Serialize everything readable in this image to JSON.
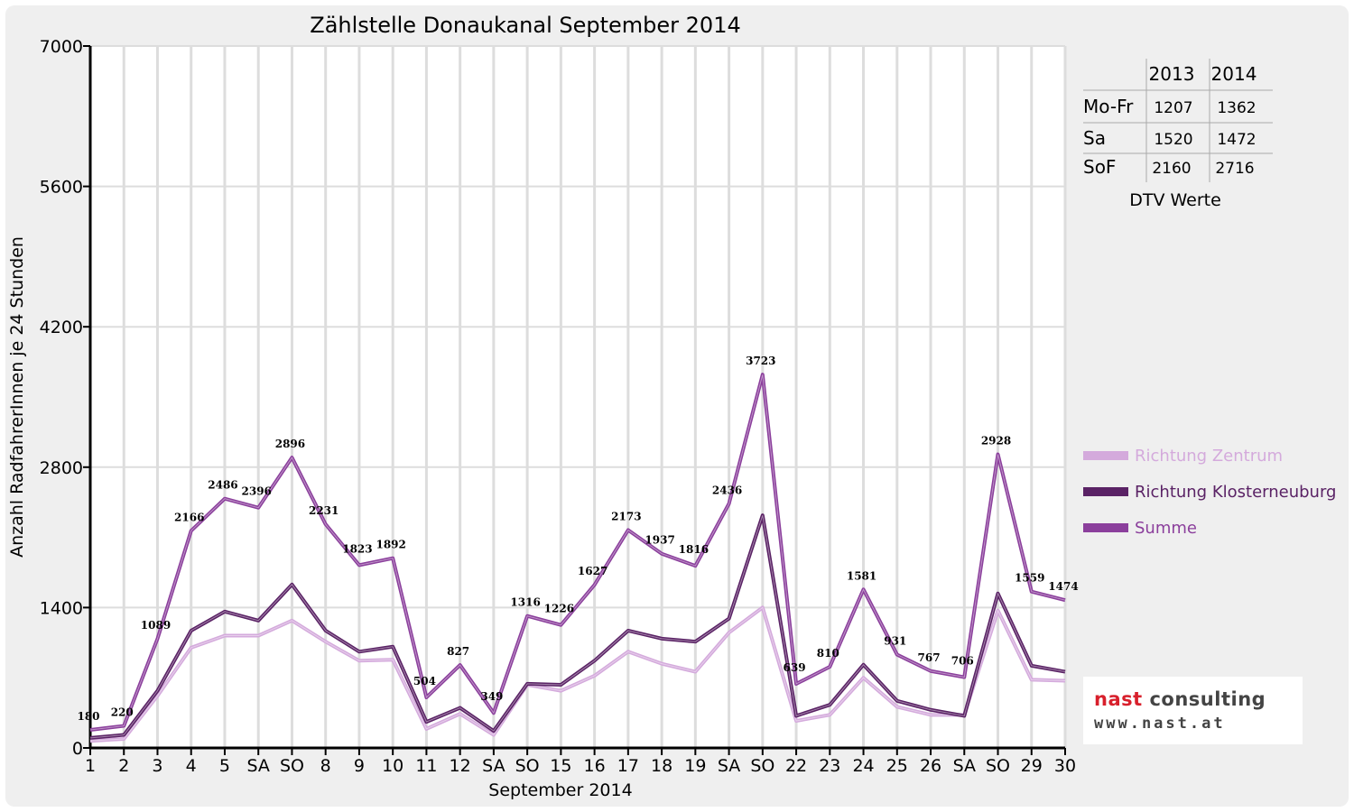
{
  "chart_data": {
    "type": "line",
    "title": "Zählstelle Donaukanal September 2014",
    "xlabel": "September 2014",
    "ylabel": "Anzahl RadfahrerInnen je 24 Stunden",
    "ylim": [
      0,
      7000
    ],
    "yticks": [
      "0",
      "1400",
      "2800",
      "4200",
      "5600",
      "7000"
    ],
    "categories": [
      "1",
      "2",
      "3",
      "4",
      "5",
      "SA",
      "SO",
      "8",
      "9",
      "10",
      "11",
      "12",
      "SA",
      "SO",
      "15",
      "16",
      "17",
      "18",
      "19",
      "SA",
      "SO",
      "22",
      "23",
      "24",
      "25",
      "26",
      "SA",
      "SO",
      "29",
      "30"
    ],
    "highlight_categories": [
      6,
      13,
      20,
      27
    ],
    "highlight_color": "#ff0000",
    "series": [
      {
        "name": "Richtung Zentrum",
        "color": "#d4aadc",
        "values": [
          70,
          90,
          520,
          1000,
          1120,
          1120,
          1270,
          1060,
          870,
          880,
          190,
          340,
          130,
          630,
          570,
          720,
          960,
          840,
          760,
          1150,
          1400,
          270,
          330,
          700,
          410,
          330,
          330,
          1370,
          680,
          670
        ]
      },
      {
        "name": "Richtung Klosterneuburg",
        "color": "#5a2265",
        "values": [
          100,
          130,
          570,
          1170,
          1360,
          1270,
          1630,
          1170,
          960,
          1010,
          260,
          400,
          170,
          640,
          630,
          870,
          1170,
          1090,
          1060,
          1290,
          2320,
          320,
          430,
          830,
          470,
          380,
          320,
          1540,
          820,
          760
        ]
      },
      {
        "name": "Summe",
        "color": "#8b3f9c",
        "values": [
          180,
          220,
          1089,
          2166,
          2486,
          2396,
          2896,
          2231,
          1823,
          1892,
          504,
          827,
          349,
          1316,
          1226,
          1627,
          2173,
          1937,
          1816,
          2436,
          3723,
          639,
          810,
          1581,
          931,
          767,
          706,
          2928,
          1559,
          1474
        ]
      }
    ],
    "data_labels": [
      "180",
      "220",
      "1089",
      "2166",
      "2486",
      "2396",
      "2896",
      "2231",
      "1823",
      "1892",
      "504",
      "827",
      "349",
      "1316",
      "1226",
      "1627",
      "2173",
      "1937",
      "1816",
      "2436",
      "3723",
      "639",
      "810",
      "1581",
      "931",
      "767",
      "706",
      "2928",
      "1559",
      "1474"
    ],
    "grid": true,
    "legend_placement": "right"
  },
  "dtv_table": {
    "headers": [
      "2013",
      "2014"
    ],
    "rows": [
      {
        "label": "Mo-Fr",
        "v2013": "1207",
        "v2014": "1362"
      },
      {
        "label": "Sa",
        "v2013": "1520",
        "v2014": "1472"
      },
      {
        "label": "SoF",
        "v2013": "2160",
        "v2014": "2716"
      }
    ],
    "caption": "DTV Werte"
  },
  "logo": {
    "word1": "nast",
    "word2": "consulting",
    "url": "www.nast.at"
  }
}
